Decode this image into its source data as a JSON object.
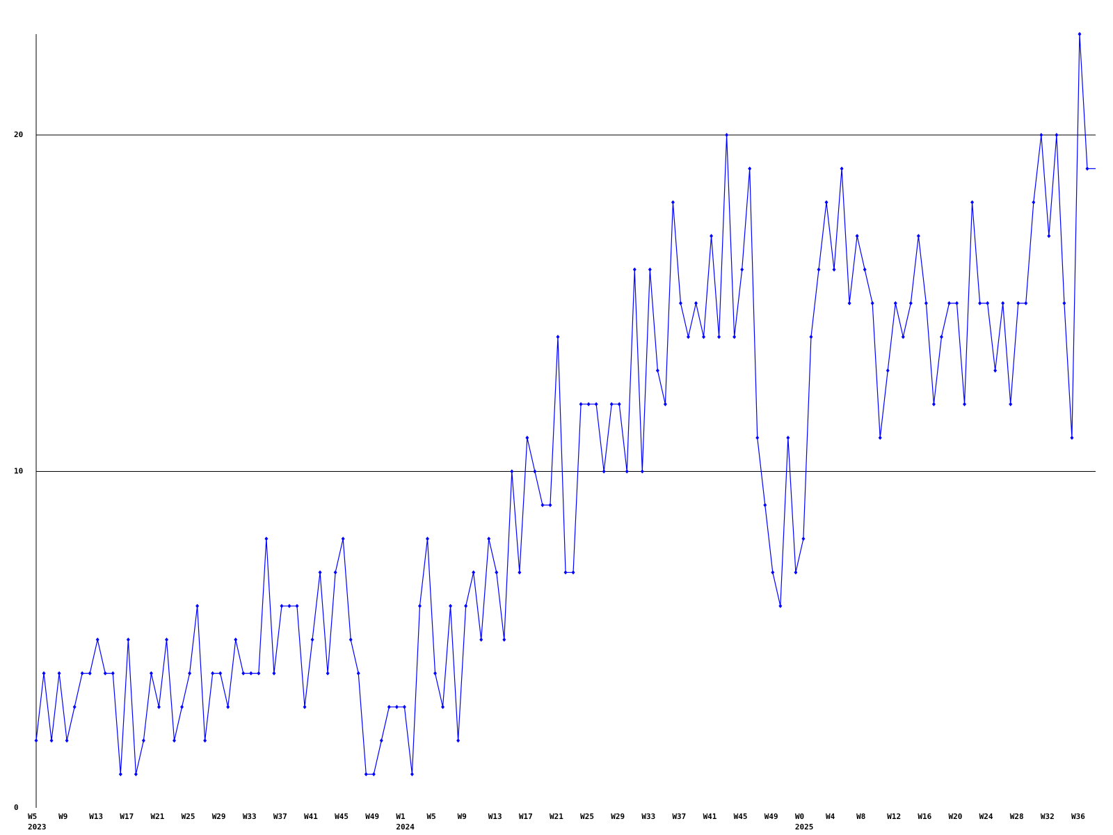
{
  "chart_data": {
    "type": "line",
    "categories": [
      "W5",
      null,
      null,
      null,
      "W9",
      null,
      null,
      null,
      "W13",
      null,
      null,
      null,
      "W17",
      null,
      null,
      null,
      "W21",
      null,
      null,
      null,
      "W25",
      null,
      null,
      null,
      "W29",
      null,
      null,
      null,
      "W33",
      null,
      null,
      null,
      "W37",
      null,
      null,
      null,
      "W41",
      null,
      null,
      null,
      "W45",
      null,
      null,
      null,
      "W49",
      null,
      null,
      null,
      "W1",
      null,
      null,
      null,
      "W5",
      null,
      null,
      null,
      "W9",
      null,
      null,
      null,
      "W13",
      null,
      null,
      null,
      "W17",
      null,
      null,
      null,
      "W21",
      null,
      null,
      null,
      "W25",
      null,
      null,
      null,
      "W29",
      null,
      null,
      null,
      "W33",
      null,
      null,
      null,
      "W37",
      null,
      null,
      null,
      "W41",
      null,
      null,
      null,
      "W45",
      null,
      null,
      null,
      "W49",
      null,
      null,
      null,
      "W0",
      null,
      null,
      null,
      "W4",
      null,
      null,
      null,
      "W8",
      null,
      null,
      null,
      "W12",
      null,
      null,
      null,
      "W16",
      null,
      null,
      null,
      "W20",
      null,
      null,
      null,
      "W24",
      null,
      null,
      null,
      "W28",
      null,
      null,
      null,
      "W32",
      null,
      null,
      null,
      "W36",
      null
    ],
    "year_labels": [
      "2023",
      null,
      null,
      null,
      null,
      null,
      null,
      null,
      null,
      null,
      null,
      null,
      null,
      null,
      null,
      null,
      null,
      null,
      null,
      null,
      null,
      null,
      null,
      null,
      null,
      null,
      null,
      null,
      null,
      null,
      null,
      null,
      null,
      null,
      null,
      null,
      null,
      null,
      null,
      null,
      null,
      null,
      null,
      null,
      null,
      null,
      null,
      null,
      "2024",
      null,
      null,
      null,
      null,
      null,
      null,
      null,
      null,
      null,
      null,
      null,
      null,
      null,
      null,
      null,
      null,
      null,
      null,
      null,
      null,
      null,
      null,
      null,
      null,
      null,
      null,
      null,
      null,
      null,
      null,
      null,
      null,
      null,
      null,
      null,
      null,
      null,
      null,
      null,
      null,
      null,
      null,
      null,
      null,
      null,
      null,
      null,
      null,
      null,
      null,
      null,
      "2025",
      null,
      null,
      null,
      null,
      null,
      null,
      null,
      null,
      null,
      null,
      null,
      null,
      null,
      null,
      null,
      null,
      null,
      null,
      null,
      null,
      null,
      null,
      null,
      null,
      null,
      null,
      null,
      null,
      null,
      null,
      null,
      null,
      null,
      null,
      null,
      null
    ],
    "values": [
      2,
      4,
      2,
      4,
      2,
      3,
      4,
      4,
      5,
      4,
      4,
      1,
      5,
      1,
      2,
      4,
      3,
      5,
      2,
      3,
      4,
      6,
      2,
      4,
      4,
      3,
      5,
      4,
      4,
      4,
      8,
      4,
      6,
      6,
      6,
      3,
      5,
      7,
      4,
      7,
      8,
      5,
      4,
      1,
      1,
      2,
      3,
      3,
      3,
      1,
      6,
      8,
      4,
      3,
      6,
      2,
      6,
      7,
      5,
      8,
      7,
      5,
      10,
      7,
      11,
      10,
      9,
      9,
      14,
      7,
      7,
      12,
      12,
      12,
      10,
      12,
      12,
      10,
      16,
      10,
      16,
      13,
      12,
      18,
      15,
      14,
      15,
      14,
      17,
      14,
      20,
      14,
      16,
      19,
      11,
      9,
      7,
      6,
      11,
      7,
      8,
      14,
      16,
      18,
      16,
      19,
      15,
      17,
      16,
      15,
      11,
      13,
      15,
      14,
      15,
      17,
      15,
      12,
      14,
      15,
      15,
      12,
      18,
      15,
      15,
      13,
      15,
      12,
      15,
      15,
      18,
      20,
      17,
      20,
      15,
      11,
      23,
      19
    ],
    "color": "#0000ff",
    "ylim": [
      0,
      23
    ],
    "yticks": [
      0,
      10,
      20
    ],
    "grid": true
  }
}
